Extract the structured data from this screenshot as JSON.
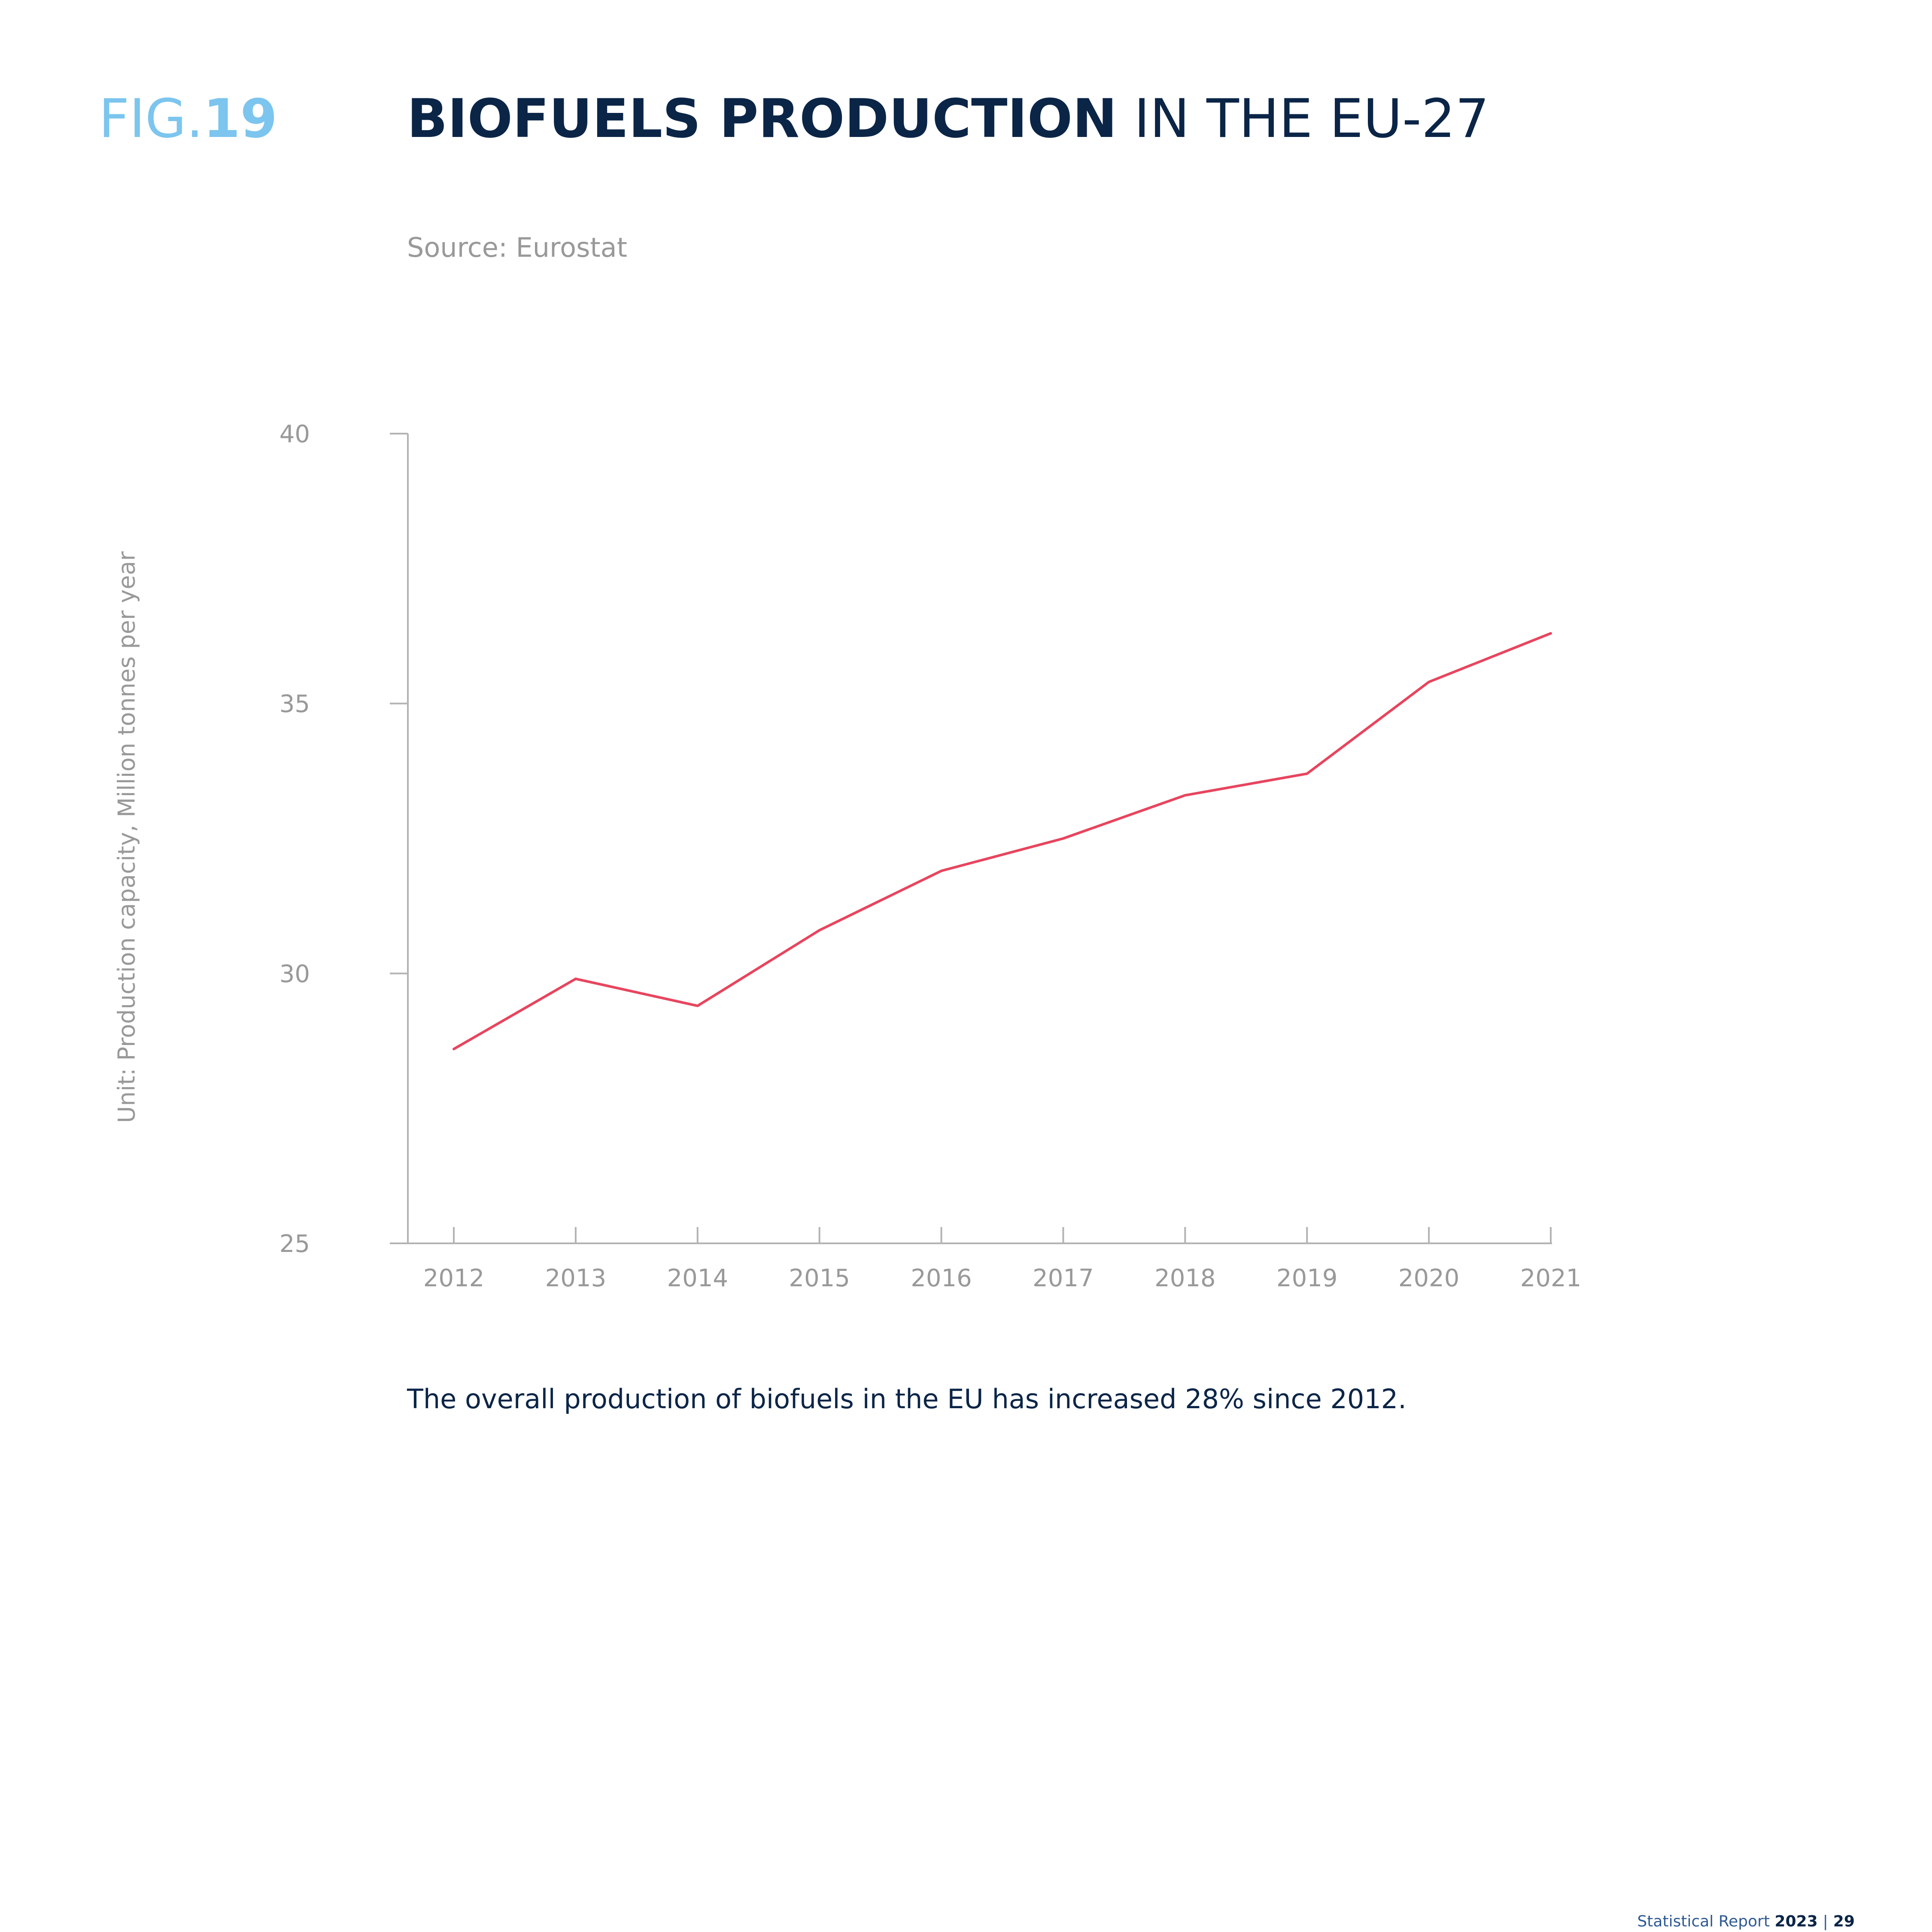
{
  "header": {
    "fig_prefix": "FIG.",
    "fig_number": "19",
    "title_bold": "BIOFUELS PRODUCTION",
    "title_light": "IN THE EU-27"
  },
  "source": "Source: Eurostat",
  "caption": "The overall production of biofuels in the EU has increased 28% since 2012.",
  "footer": {
    "report_label": "Statistical Report",
    "year": "2023",
    "separator": "|",
    "page": "29"
  },
  "colors": {
    "line": "#e8455e",
    "axis": "#b3b3b3",
    "tick_text": "#999999",
    "accent": "#7cc5ee",
    "navy": "#0b2547"
  },
  "chart_data": {
    "type": "line",
    "title": "BIOFUELS PRODUCTION IN THE EU-27",
    "xlabel": "",
    "ylabel": "Unit: Production capacity, Million tonnes per year",
    "x": [
      "2012",
      "2013",
      "2014",
      "2015",
      "2016",
      "2017",
      "2018",
      "2019",
      "2020",
      "2021"
    ],
    "series": [
      {
        "values": [
          28.6,
          29.9,
          29.4,
          30.8,
          31.9,
          32.5,
          33.3,
          33.7,
          35.4,
          36.3
        ]
      }
    ],
    "ylim": [
      25,
      40
    ],
    "yticks": [
      25,
      30,
      35,
      40
    ],
    "grid": false,
    "legend": "none"
  }
}
